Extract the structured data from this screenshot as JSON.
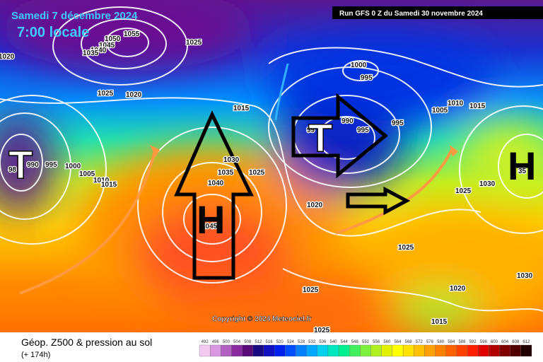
{
  "header": {
    "date": "Samedi 7 décembre 2024",
    "time": "7:00 locale",
    "run": "Run GFS 0 Z du Samedi 30 novembre 2024"
  },
  "copyright": "Copyright © 2024 Meteociel.fr",
  "footer": {
    "title": "Géop. Z500 & pression au sol",
    "lead": "(+ 174h)"
  },
  "symbols": [
    "T",
    "H",
    "T",
    "H"
  ],
  "isobar_labels": [
    1020,
    1055,
    1050,
    1045,
    1040,
    1035,
    1025,
    1025,
    1020,
    1015,
    1000,
    995,
    990,
    995,
    995,
    1005,
    1010,
    1015,
    990,
    995,
    1000,
    1005,
    1010,
    1015,
    1030,
    1035,
    1040,
    1025,
    1045,
    1020,
    1025,
    1030,
    1025,
    1030,
    1025,
    1020,
    1015,
    1025,
    "98",
    "35",
    "99"
  ],
  "color_scale": {
    "labels": [
      492,
      496,
      500,
      504,
      508,
      512,
      516,
      520,
      524,
      528,
      532,
      536,
      540,
      544,
      548,
      552,
      556,
      560,
      564,
      568,
      572,
      576,
      580,
      584,
      588,
      592,
      596,
      600,
      604,
      608,
      612
    ],
    "colors": [
      "#f0c8f0",
      "#d898e0",
      "#b060c0",
      "#8a2aa0",
      "#5a0a78",
      "#1a0a80",
      "#1010c0",
      "#0020f0",
      "#0050ff",
      "#0080ff",
      "#00a8ff",
      "#00d0f0",
      "#00e8c0",
      "#00f090",
      "#40f060",
      "#80f040",
      "#b0f020",
      "#e0f000",
      "#ffff00",
      "#ffe000",
      "#ffc000",
      "#ffa000",
      "#ff8000",
      "#ff6000",
      "#ff4000",
      "#ff2000",
      "#e00000",
      "#b00000",
      "#800000",
      "#500000",
      "#200000"
    ]
  }
}
